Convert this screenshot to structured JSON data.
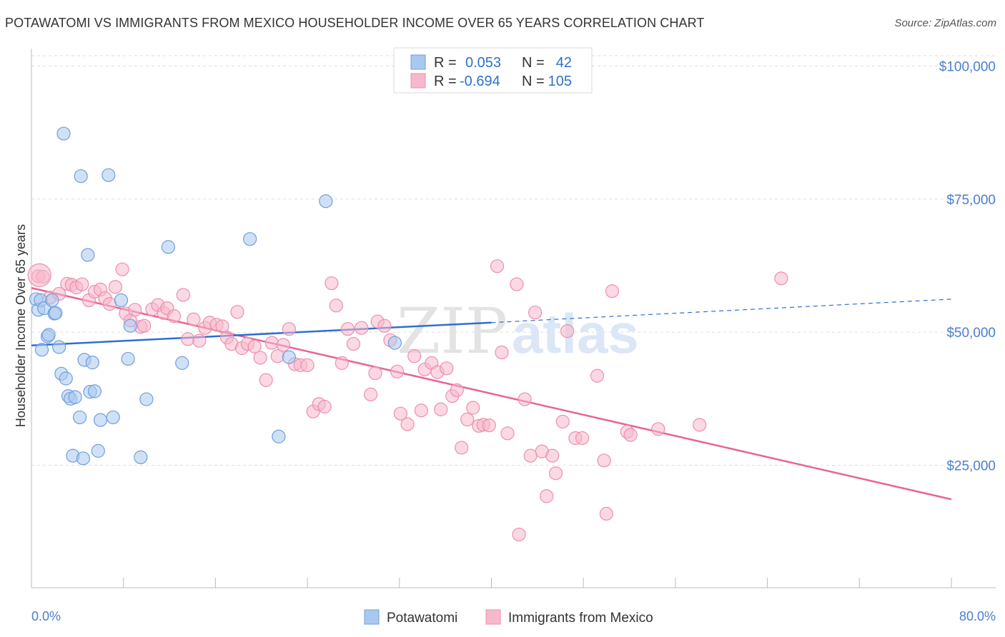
{
  "header": {
    "title": "POTAWATOMI VS IMMIGRANTS FROM MEXICO HOUSEHOLDER INCOME OVER 65 YEARS CORRELATION CHART",
    "source": "Source: ZipAtlas.com"
  },
  "watermark": {
    "text_zip": "ZIP",
    "text_atlas": "atlas"
  },
  "legend_top": [
    {
      "r_label": "R =",
      "r_value": "0.053",
      "n_label": "N =",
      "n_value": "42"
    },
    {
      "r_label": "R =",
      "r_value": "-0.694",
      "n_label": "N =",
      "n_value": "105"
    }
  ],
  "legend_bottom": [
    "Potawatomi",
    "Immigrants from Mexico"
  ],
  "colors": {
    "potawatomi_fill": "#a9c8f0",
    "potawatomi_stroke": "#6f9fdc",
    "potawatomi_line": "#2f6fd0",
    "mexico_fill": "#f7b8cb",
    "mexico_stroke": "#ec8fae",
    "mexico_line": "#e86494",
    "tick": "#4a7fd0"
  },
  "chart_data": {
    "type": "scatter",
    "title": "POTAWATOMI VS IMMIGRANTS FROM MEXICO HOUSEHOLDER INCOME OVER 65 YEARS CORRELATION CHART",
    "xlabel": "",
    "ylabel": "Householder Income Over 65 years",
    "xlim": [
      0,
      80
    ],
    "ylim": [
      2000,
      103000
    ],
    "x_tick_labels": [
      "0.0%",
      "80.0%"
    ],
    "y_ticks": [
      25000,
      50000,
      75000,
      100000
    ],
    "y_tick_labels": [
      "$25,000",
      "$50,000",
      "$75,000",
      "$100,000"
    ],
    "grid": true,
    "legend": "top-center",
    "series": [
      {
        "name": "Potawatomi",
        "points": [
          [
            0.4,
            56200
          ],
          [
            0.6,
            54200
          ],
          [
            0.8,
            56000
          ],
          [
            0.9,
            46700
          ],
          [
            1.1,
            54500
          ],
          [
            1.4,
            49200
          ],
          [
            1.5,
            49500
          ],
          [
            1.8,
            56000
          ],
          [
            2.0,
            53500
          ],
          [
            2.1,
            53600
          ],
          [
            2.4,
            47200
          ],
          [
            2.6,
            42200
          ],
          [
            2.8,
            87300
          ],
          [
            3.0,
            41300
          ],
          [
            3.2,
            38000
          ],
          [
            3.4,
            37500
          ],
          [
            3.6,
            26800
          ],
          [
            3.8,
            37800
          ],
          [
            4.2,
            34000
          ],
          [
            4.3,
            79300
          ],
          [
            4.5,
            26300
          ],
          [
            4.6,
            44800
          ],
          [
            4.9,
            64500
          ],
          [
            5.1,
            38800
          ],
          [
            5.3,
            44300
          ],
          [
            5.5,
            38900
          ],
          [
            5.8,
            27700
          ],
          [
            6.0,
            33500
          ],
          [
            6.7,
            79500
          ],
          [
            7.1,
            34000
          ],
          [
            7.8,
            56000
          ],
          [
            8.4,
            45000
          ],
          [
            8.6,
            51200
          ],
          [
            9.5,
            26500
          ],
          [
            10.0,
            37400
          ],
          [
            11.9,
            66000
          ],
          [
            13.1,
            44200
          ],
          [
            19.0,
            67500
          ],
          [
            21.5,
            30400
          ],
          [
            22.4,
            45300
          ],
          [
            25.6,
            74600
          ],
          [
            31.6,
            48000
          ]
        ],
        "trend": {
          "x": [
            0,
            40
          ],
          "y": [
            47500,
            51800
          ]
        },
        "trend_extension": {
          "x": [
            40,
            80
          ],
          "y": [
            51800,
            56200
          ]
        }
      },
      {
        "name": "Immigrants from Mexico",
        "points": [
          [
            0.6,
            60500
          ],
          [
            1.0,
            60400
          ],
          [
            1.6,
            56500
          ],
          [
            2.4,
            57200
          ],
          [
            3.1,
            59100
          ],
          [
            3.5,
            58900
          ],
          [
            3.9,
            58400
          ],
          [
            4.4,
            59000
          ],
          [
            5.0,
            56000
          ],
          [
            5.5,
            57600
          ],
          [
            6.0,
            58000
          ],
          [
            6.4,
            56400
          ],
          [
            6.8,
            55300
          ],
          [
            7.3,
            58500
          ],
          [
            7.9,
            61800
          ],
          [
            8.2,
            53500
          ],
          [
            8.6,
            52200
          ],
          [
            9.0,
            54200
          ],
          [
            9.5,
            51000
          ],
          [
            9.8,
            51200
          ],
          [
            10.5,
            54300
          ],
          [
            11.0,
            55100
          ],
          [
            11.5,
            53600
          ],
          [
            11.8,
            54500
          ],
          [
            12.4,
            53000
          ],
          [
            13.2,
            57000
          ],
          [
            13.6,
            48700
          ],
          [
            14.1,
            52400
          ],
          [
            14.6,
            48400
          ],
          [
            15.1,
            50800
          ],
          [
            15.5,
            51800
          ],
          [
            16.1,
            51400
          ],
          [
            16.6,
            51100
          ],
          [
            17.0,
            49000
          ],
          [
            17.4,
            47800
          ],
          [
            17.9,
            53800
          ],
          [
            18.3,
            47000
          ],
          [
            18.8,
            47800
          ],
          [
            19.4,
            47300
          ],
          [
            19.9,
            45200
          ],
          [
            20.4,
            41000
          ],
          [
            20.9,
            48000
          ],
          [
            21.4,
            45500
          ],
          [
            21.9,
            47600
          ],
          [
            22.4,
            50600
          ],
          [
            22.9,
            44000
          ],
          [
            23.4,
            43800
          ],
          [
            24.0,
            43800
          ],
          [
            24.5,
            35100
          ],
          [
            25.0,
            36500
          ],
          [
            25.5,
            36000
          ],
          [
            26.1,
            59200
          ],
          [
            26.5,
            55000
          ],
          [
            27.0,
            44200
          ],
          [
            27.5,
            50600
          ],
          [
            28.0,
            47800
          ],
          [
            28.7,
            50800
          ],
          [
            29.5,
            38300
          ],
          [
            29.9,
            42300
          ],
          [
            30.1,
            52000
          ],
          [
            30.7,
            51200
          ],
          [
            31.2,
            48500
          ],
          [
            31.8,
            42600
          ],
          [
            32.1,
            34700
          ],
          [
            32.7,
            32700
          ],
          [
            33.3,
            45500
          ],
          [
            33.9,
            35300
          ],
          [
            34.2,
            43000
          ],
          [
            34.8,
            44200
          ],
          [
            35.3,
            42500
          ],
          [
            35.6,
            35500
          ],
          [
            36.1,
            43200
          ],
          [
            36.6,
            38000
          ],
          [
            37.0,
            39100
          ],
          [
            37.4,
            28300
          ],
          [
            37.9,
            33600
          ],
          [
            38.4,
            35800
          ],
          [
            38.9,
            32400
          ],
          [
            39.3,
            32600
          ],
          [
            39.8,
            32500
          ],
          [
            40.5,
            62400
          ],
          [
            40.9,
            46200
          ],
          [
            41.4,
            31000
          ],
          [
            42.2,
            59000
          ],
          [
            42.4,
            12000
          ],
          [
            42.9,
            37400
          ],
          [
            43.4,
            26800
          ],
          [
            43.8,
            53700
          ],
          [
            44.4,
            27600
          ],
          [
            44.8,
            19200
          ],
          [
            45.3,
            26800
          ],
          [
            45.6,
            23500
          ],
          [
            46.2,
            33200
          ],
          [
            46.6,
            50200
          ],
          [
            47.3,
            30100
          ],
          [
            47.9,
            30100
          ],
          [
            49.2,
            41800
          ],
          [
            49.8,
            25900
          ],
          [
            50.0,
            15900
          ],
          [
            50.5,
            57700
          ],
          [
            51.8,
            31300
          ],
          [
            52.1,
            30700
          ],
          [
            54.5,
            31800
          ],
          [
            58.1,
            32600
          ],
          [
            65.2,
            60100
          ]
        ],
        "trend": {
          "x": [
            0,
            80
          ],
          "y": [
            58300,
            18600
          ]
        }
      }
    ]
  }
}
